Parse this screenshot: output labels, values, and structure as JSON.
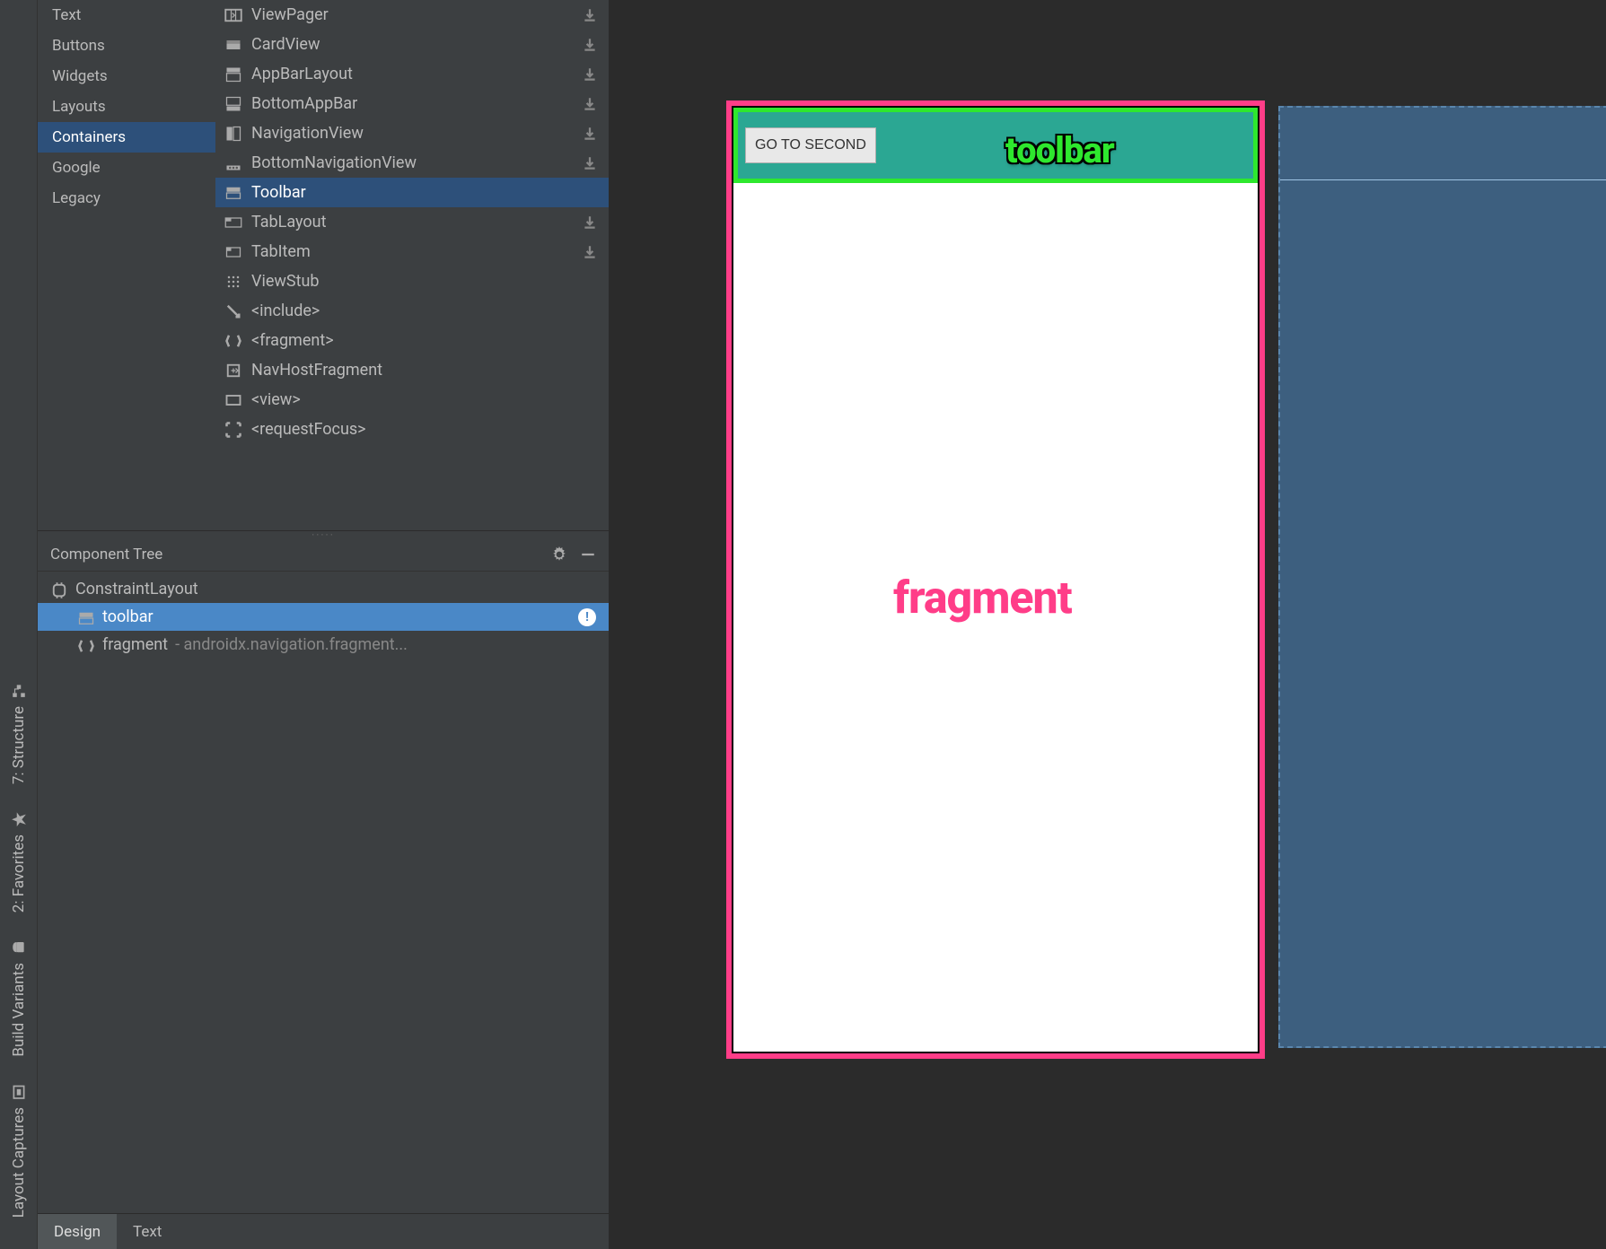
{
  "rail": [
    {
      "label": "7: Structure"
    },
    {
      "label": "2: Favorites"
    },
    {
      "label": "Build Variants"
    },
    {
      "label": "Layout Captures"
    }
  ],
  "palette": {
    "categories": [
      {
        "label": "Text",
        "selected": false
      },
      {
        "label": "Buttons",
        "selected": false
      },
      {
        "label": "Widgets",
        "selected": false
      },
      {
        "label": "Layouts",
        "selected": false
      },
      {
        "label": "Containers",
        "selected": true
      },
      {
        "label": "Google",
        "selected": false
      },
      {
        "label": "Legacy",
        "selected": false
      }
    ],
    "items": [
      {
        "icon": "viewpager",
        "label": "ViewPager",
        "dl": true,
        "selected": false
      },
      {
        "icon": "cardview",
        "label": "CardView",
        "dl": true,
        "selected": false
      },
      {
        "icon": "appbar",
        "label": "AppBarLayout",
        "dl": true,
        "selected": false
      },
      {
        "icon": "bottomappbar",
        "label": "BottomAppBar",
        "dl": true,
        "selected": false
      },
      {
        "icon": "navview",
        "label": "NavigationView",
        "dl": true,
        "selected": false
      },
      {
        "icon": "bottomnav",
        "label": "BottomNavigationView",
        "dl": true,
        "selected": false
      },
      {
        "icon": "toolbar",
        "label": "Toolbar",
        "dl": false,
        "selected": true
      },
      {
        "icon": "tablayout",
        "label": "TabLayout",
        "dl": true,
        "selected": false
      },
      {
        "icon": "tabitem",
        "label": "TabItem",
        "dl": true,
        "selected": false
      },
      {
        "icon": "viewstub",
        "label": "ViewStub",
        "dl": false,
        "selected": false
      },
      {
        "icon": "include",
        "label": "<include>",
        "dl": false,
        "selected": false
      },
      {
        "icon": "fragment",
        "label": "<fragment>",
        "dl": false,
        "selected": false
      },
      {
        "icon": "navhost",
        "label": "NavHostFragment",
        "dl": false,
        "selected": false
      },
      {
        "icon": "view",
        "label": "<view>",
        "dl": false,
        "selected": false
      },
      {
        "icon": "reqfocus",
        "label": "<requestFocus>",
        "dl": false,
        "selected": false
      }
    ]
  },
  "tree": {
    "title": "Component Tree",
    "rows": [
      {
        "icon": "constraint",
        "label": "ConstraintLayout",
        "selected": false,
        "level": 0
      },
      {
        "icon": "toolbar",
        "label": "toolbar",
        "selected": true,
        "level": 1,
        "warn": true
      },
      {
        "icon": "fragment",
        "label": "fragment",
        "suffix": "- androidx.navigation.fragment...",
        "selected": false,
        "level": 1
      }
    ]
  },
  "canvas": {
    "toolbar_button": "GO TO SECOND",
    "toolbar_annotation": "toolbar",
    "fragment_annotation": "fragment",
    "outline_color": "#ff3d88",
    "toolbar_outline_color": "#2ee82e",
    "toolbar_bg": "#2ba793",
    "device_bg": "#ffffff",
    "blueprint_bg": "#3d5f7f"
  },
  "tabs": {
    "design": "Design",
    "text": "Text",
    "active": "design"
  },
  "colors": {
    "panel_bg": "#3c3f41",
    "canvas_bg": "#2b2b2b",
    "selection_blue": "#4a88c7",
    "category_sel": "#2d507a",
    "text_grey": "#bbbbbb"
  }
}
